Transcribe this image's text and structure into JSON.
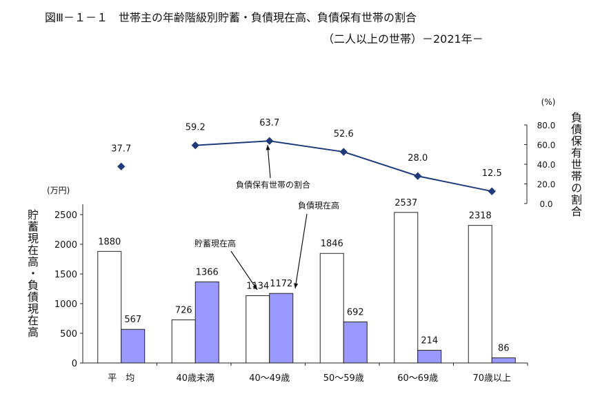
{
  "chart_data": {
    "type": "bar",
    "title": "図Ⅲ－１－１　世帯主の年齢階級別貯蓄・負債現在高、負債保有世帯の割合",
    "subtitle": "（二人以上の世帯）－2021年－",
    "categories": [
      "平　均",
      "40歳未満",
      "40～49歳",
      "50～59歳",
      "60～69歳",
      "70歳以上"
    ],
    "series": [
      {
        "name": "貯蓄現在高",
        "type": "bar",
        "axis": "left",
        "color": "#ffffff",
        "values": [
          1880,
          726,
          1134,
          1846,
          2537,
          2318
        ]
      },
      {
        "name": "負債現在高",
        "type": "bar",
        "axis": "left",
        "color": "#9999ff",
        "values": [
          567,
          1366,
          1172,
          692,
          214,
          86
        ]
      },
      {
        "name": "負債保有世帯の割合",
        "type": "line",
        "axis": "right",
        "color": "#1f3a7a",
        "values": [
          37.7,
          59.2,
          63.7,
          52.6,
          28.0,
          12.5
        ],
        "labels": [
          "37.7",
          "59.2",
          "63.7",
          "52.6",
          "28.0",
          "12.5"
        ]
      }
    ],
    "left_axis": {
      "label": "貯蓄現在高・負債現在高",
      "unit": "(万円)",
      "range": [
        0,
        2500
      ],
      "ticks": [
        "0",
        "500",
        "1000",
        "1500",
        "2000",
        "2500"
      ]
    },
    "right_axis": {
      "label": "負債保有世帯の割合",
      "unit": "(%)",
      "range": [
        0,
        80
      ],
      "ticks": [
        "0.0",
        "20.0",
        "40.0",
        "60.0",
        "80.0"
      ]
    },
    "annotations": [
      "負債保有世帯の割合",
      "負債現在高",
      "貯蓄現在高"
    ]
  }
}
